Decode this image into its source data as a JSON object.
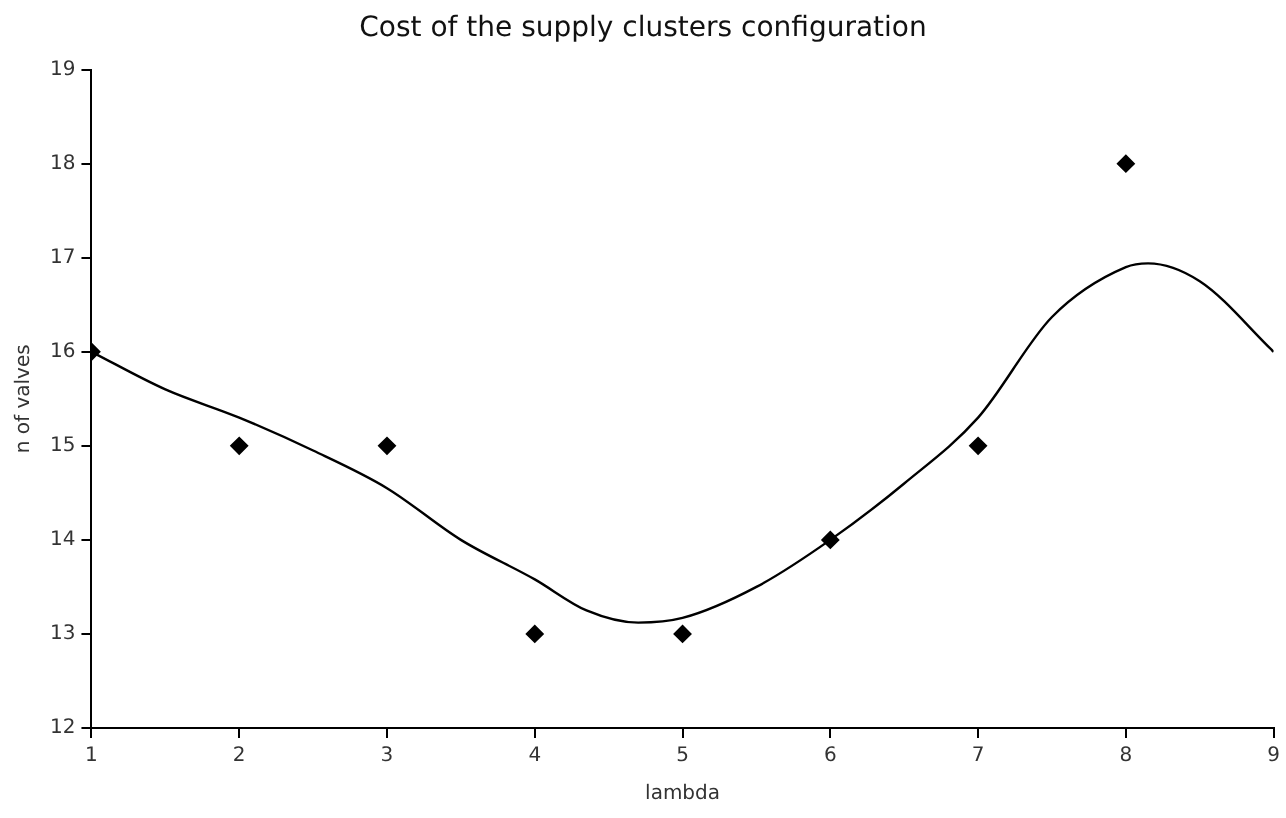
{
  "chart_data": {
    "type": "scatter",
    "title": "Cost of the supply clusters configuration",
    "xlabel": "lambda",
    "ylabel": "n of valves",
    "x": [
      1,
      2,
      3,
      4,
      5,
      6,
      7,
      8
    ],
    "series": [
      {
        "type": "scatter",
        "color": "#000000",
        "marker": "diamond",
        "values": [
          16,
          15,
          15,
          13,
          13,
          14,
          15,
          18
        ]
      },
      {
        "type": "line",
        "color": "#000000",
        "marker": "none",
        "line_style": "solid",
        "x": [
          1,
          1.5,
          2,
          2.5,
          3,
          3.5,
          4,
          4.35,
          4.7,
          5,
          5.5,
          6,
          6.5,
          7,
          7.5,
          8,
          8.15,
          8.5,
          9
        ],
        "values": [
          16,
          15.6,
          15.3,
          14.95,
          14.55,
          14,
          13.58,
          13.25,
          13.12,
          13.17,
          13.5,
          14,
          14.6,
          15.3,
          16.37,
          16.9,
          16.94,
          16.75,
          16.0
        ]
      }
    ],
    "xlim": [
      1,
      9
    ],
    "xticks": [
      1,
      2,
      3,
      4,
      5,
      6,
      7,
      8,
      9
    ],
    "ylim": [
      12,
      19
    ],
    "yticks": [
      12,
      13,
      14,
      15,
      16,
      17,
      18,
      19
    ],
    "grid": false,
    "legend": false
  }
}
